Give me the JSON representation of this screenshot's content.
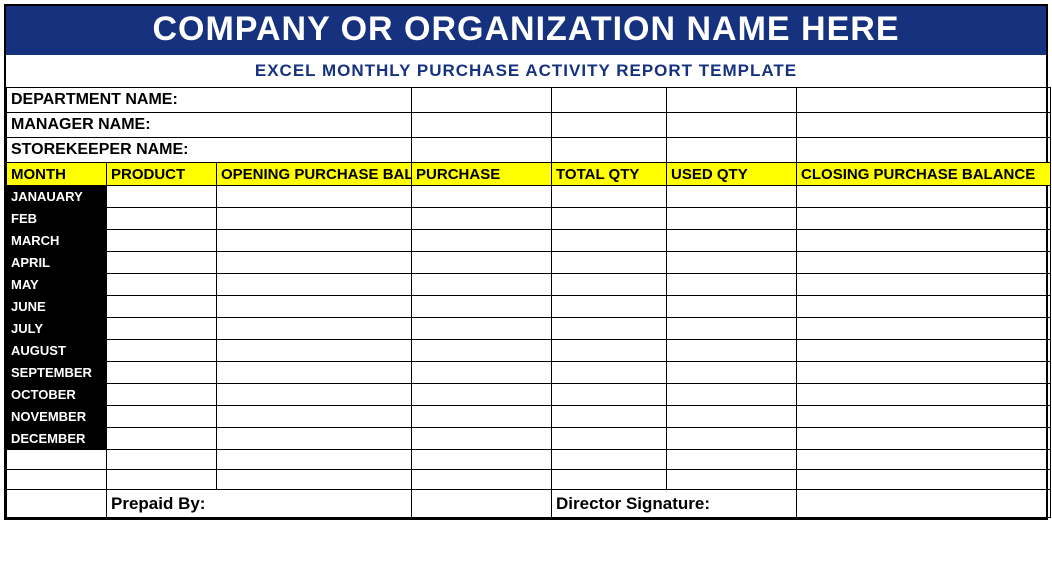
{
  "colors": {
    "titleBg": "#16327f",
    "titleText": "#ffffff",
    "subtitleText": "#16327f",
    "headerBg": "#ffff00",
    "headerText": "#000000",
    "monthBg": "#000000",
    "monthText": "#ffffff",
    "border": "#000000"
  },
  "title": "COMPANY OR ORGANIZATION NAME HERE",
  "subtitle": "EXCEL MONTHLY PURCHASE ACTIVITY  REPORT TEMPLATE",
  "infoLabels": {
    "department": "DEPARTMENT NAME:",
    "manager": "MANAGER NAME:",
    "storekeeper": "STOREKEEPER NAME:"
  },
  "infoValues": {
    "department": "",
    "manager": "",
    "storekeeper": ""
  },
  "columns": {
    "month": "MONTH",
    "product": "PRODUCT",
    "opening": "OPENING PURCHASE BAL",
    "purchase": "PURCHASE",
    "totalQty": "TOTAL QTY",
    "usedQty": "USED  QTY",
    "closing": "CLOSING PURCHASE BALANCE"
  },
  "months": [
    "JANAUARY",
    "FEB",
    "MARCH",
    "APRIL",
    "MAY",
    "JUNE",
    "JULY",
    "AUGUST",
    "SEPTEMBER",
    "OCTOBER",
    "NOVEMBER",
    "DECEMBER"
  ],
  "rows": [
    {
      "product": "",
      "opening": "",
      "purchase": "",
      "total": "",
      "used": "",
      "closing": ""
    },
    {
      "product": "",
      "opening": "",
      "purchase": "",
      "total": "",
      "used": "",
      "closing": ""
    },
    {
      "product": "",
      "opening": "",
      "purchase": "",
      "total": "",
      "used": "",
      "closing": ""
    },
    {
      "product": "",
      "opening": "",
      "purchase": "",
      "total": "",
      "used": "",
      "closing": ""
    },
    {
      "product": "",
      "opening": "",
      "purchase": "",
      "total": "",
      "used": "",
      "closing": ""
    },
    {
      "product": "",
      "opening": "",
      "purchase": "",
      "total": "",
      "used": "",
      "closing": ""
    },
    {
      "product": "",
      "opening": "",
      "purchase": "",
      "total": "",
      "used": "",
      "closing": ""
    },
    {
      "product": "",
      "opening": "",
      "purchase": "",
      "total": "",
      "used": "",
      "closing": ""
    },
    {
      "product": "",
      "opening": "",
      "purchase": "",
      "total": "",
      "used": "",
      "closing": ""
    },
    {
      "product": "",
      "opening": "",
      "purchase": "",
      "total": "",
      "used": "",
      "closing": ""
    },
    {
      "product": "",
      "opening": "",
      "purchase": "",
      "total": "",
      "used": "",
      "closing": ""
    },
    {
      "product": "",
      "opening": "",
      "purchase": "",
      "total": "",
      "used": "",
      "closing": ""
    }
  ],
  "footer": {
    "prepaidBy": "Prepaid By:",
    "prepaidByValue": "",
    "directorSignature": "Director Signature:",
    "directorSignatureValue": ""
  }
}
